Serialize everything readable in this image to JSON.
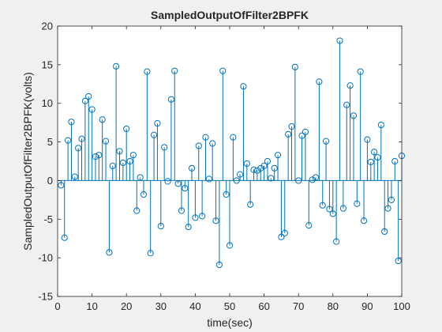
{
  "chart_data": {
    "type": "stem",
    "title": "SampledOutputOfFilter2BPFK",
    "xlabel": "time(sec)",
    "ylabel": "SampledOutputOfFilter2BPFK(volts)",
    "xlim": [
      0,
      100
    ],
    "ylim": [
      -15,
      20
    ],
    "x_ticks": [
      "0",
      "10",
      "20",
      "30",
      "40",
      "50",
      "60",
      "70",
      "80",
      "90",
      "100"
    ],
    "y_ticks": [
      "-15",
      "-10",
      "-5",
      "0",
      "5",
      "10",
      "15",
      "20"
    ],
    "grid": false,
    "colors": {
      "stem": "#0072bd",
      "axes": "#262626",
      "plot_bg": "#ffffff",
      "figure_bg": "#f0f0f0"
    },
    "series": [
      {
        "x": [
          1,
          2,
          3,
          4,
          5,
          6,
          7,
          8,
          9,
          10,
          11,
          12,
          13,
          14,
          15,
          16,
          17,
          18,
          19,
          20,
          21,
          22,
          23,
          24,
          25,
          26,
          27,
          28,
          29,
          30,
          31,
          32,
          33,
          34,
          35,
          36,
          37,
          38,
          39,
          40,
          41,
          42,
          43,
          44,
          45,
          46,
          47,
          48,
          49,
          50,
          51,
          52,
          53,
          54,
          55,
          56,
          57,
          58,
          59,
          60,
          61,
          62,
          63,
          64,
          65,
          66,
          67,
          68,
          69,
          70,
          71,
          72,
          73,
          74,
          75,
          76,
          77,
          78,
          79,
          80,
          81,
          82,
          83,
          84,
          85,
          86,
          87,
          88,
          89,
          90,
          91,
          92,
          93,
          94,
          95,
          96,
          97,
          98,
          99,
          100
        ],
        "y": [
          -0.6,
          -7.4,
          5.2,
          7.6,
          0.5,
          4.2,
          5.4,
          10.3,
          10.9,
          9.2,
          3.1,
          3.3,
          7.9,
          5.1,
          -9.3,
          1.9,
          14.8,
          3.8,
          2.3,
          6.7,
          2.5,
          3.3,
          -3.9,
          0.4,
          -1.8,
          14.1,
          -9.4,
          5.9,
          7.4,
          -5.9,
          4.3,
          -0.1,
          10.5,
          14.2,
          -0.4,
          -3.9,
          -1.0,
          -6.0,
          1.6,
          -4.8,
          4.5,
          -4.6,
          5.6,
          0.2,
          4.8,
          -5.2,
          -10.9,
          14.2,
          -1.8,
          -8.4,
          5.6,
          0.0,
          0.8,
          12.2,
          2.2,
          -3.1,
          1.4,
          1.3,
          1.6,
          1.9,
          2.5,
          0.3,
          1.6,
          3.3,
          -7.3,
          -6.8,
          6.0,
          7.0,
          14.7,
          0.0,
          5.8,
          6.3,
          -5.8,
          0.1,
          0.4,
          12.8,
          -3.2,
          5.1,
          -3.7,
          -4.3,
          -7.9,
          18.1,
          -3.6,
          9.8,
          12.3,
          8.4,
          -3.0,
          14.1,
          -5.2,
          5.3,
          2.4,
          3.7,
          3.0,
          7.2,
          -6.6,
          -3.6,
          -2.5,
          2.5,
          -10.4,
          3.2
        ]
      }
    ]
  }
}
